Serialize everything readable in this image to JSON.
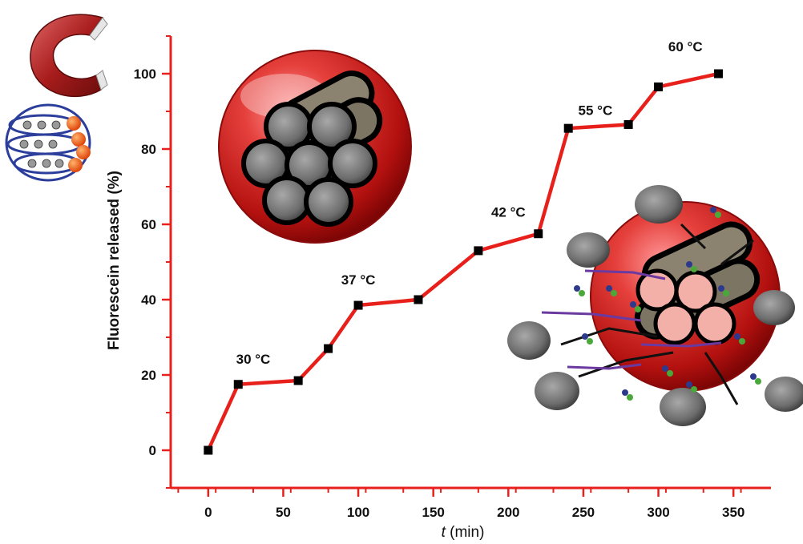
{
  "chart_data": {
    "type": "line",
    "title": "",
    "xlabel_italic": "t",
    "xlabel_unit": " (min)",
    "ylabel": "Fluorescein released  (%)",
    "xlim": [
      -25,
      375
    ],
    "ylim": [
      -10,
      110
    ],
    "x_ticks": [
      0,
      50,
      100,
      150,
      200,
      250,
      300,
      350
    ],
    "y_ticks": [
      0,
      20,
      40,
      60,
      80,
      100
    ],
    "grid": false,
    "legend": "none",
    "line_color": "#e8201b",
    "marker_color": "#000000",
    "axis_color": "#e8201b",
    "series": [
      {
        "x": [
          0,
          20,
          60,
          80,
          100,
          140,
          180,
          220,
          240,
          280,
          300,
          340
        ],
        "y": [
          0,
          17.5,
          18.5,
          27,
          38.5,
          40,
          53,
          57.5,
          85.5,
          86.5,
          96.5,
          100
        ]
      }
    ],
    "annotations": [
      {
        "text": "30 °C",
        "x": 30,
        "y": 23
      },
      {
        "text": "37 °C",
        "x": 100,
        "y": 44
      },
      {
        "text": "42 °C",
        "x": 200,
        "y": 62
      },
      {
        "text": "55 °C",
        "x": 258,
        "y": 89
      },
      {
        "text": "60 °C",
        "x": 318,
        "y": 106
      }
    ]
  },
  "icons": {
    "magnet": "magnet-icon",
    "nanoparticle": "nanoparticle-cluster-icon",
    "intact_capsule": "intact-capsule-illustration",
    "released_capsule": "released-capsule-illustration"
  }
}
